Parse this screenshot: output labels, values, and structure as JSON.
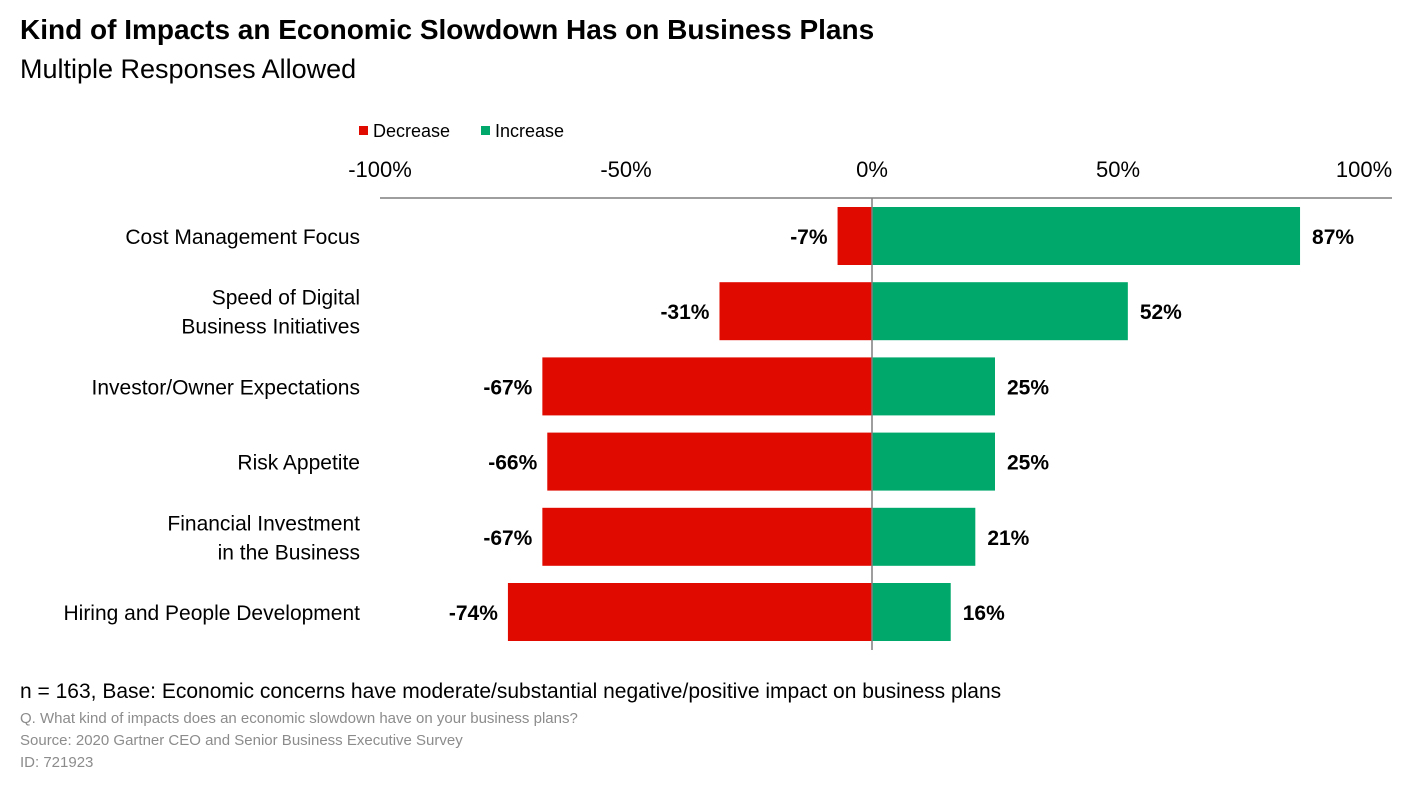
{
  "header": {
    "title": "Kind of Impacts an Economic Slowdown Has on Business Plans",
    "subtitle": "Multiple Responses Allowed"
  },
  "colors": {
    "decrease": "#e00a00",
    "increase": "#00a86b",
    "axis": "#7f7f7f"
  },
  "chart_data": {
    "type": "bar",
    "orientation": "horizontal-diverging",
    "categories": [
      [
        "Cost Management Focus"
      ],
      [
        "Speed of Digital",
        "Business Initiatives"
      ],
      [
        "Investor/Owner Expectations"
      ],
      [
        "Risk Appetite"
      ],
      [
        "Financial Investment",
        "in the Business"
      ],
      [
        "Hiring and People Development"
      ]
    ],
    "series": [
      {
        "name": "Decrease",
        "values": [
          -7,
          -31,
          -67,
          -66,
          -67,
          -74
        ],
        "labels": [
          "-7%",
          "-31%",
          "-67%",
          "-66%",
          "-67%",
          "-74%"
        ]
      },
      {
        "name": "Increase",
        "values": [
          87,
          52,
          25,
          25,
          21,
          16
        ],
        "labels": [
          "87%",
          "52%",
          "25%",
          "25%",
          "21%",
          "16%"
        ]
      }
    ],
    "xlim": [
      -100,
      100
    ],
    "xticks": [
      -100,
      -50,
      0,
      50,
      100
    ],
    "xtick_labels": [
      "-100%",
      "-50%",
      "0%",
      "50%",
      "100%"
    ],
    "axis_position": "top",
    "legend": "top-left",
    "grid": false
  },
  "footer": {
    "base": "n = 163, Base: Economic concerns have moderate/substantial negative/positive impact on business plans",
    "question": "Q. What kind of impacts does an economic slowdown have on your business plans?",
    "source": "Source: 2020 Gartner CEO and Senior Business Executive Survey",
    "id": "ID: 721923"
  }
}
